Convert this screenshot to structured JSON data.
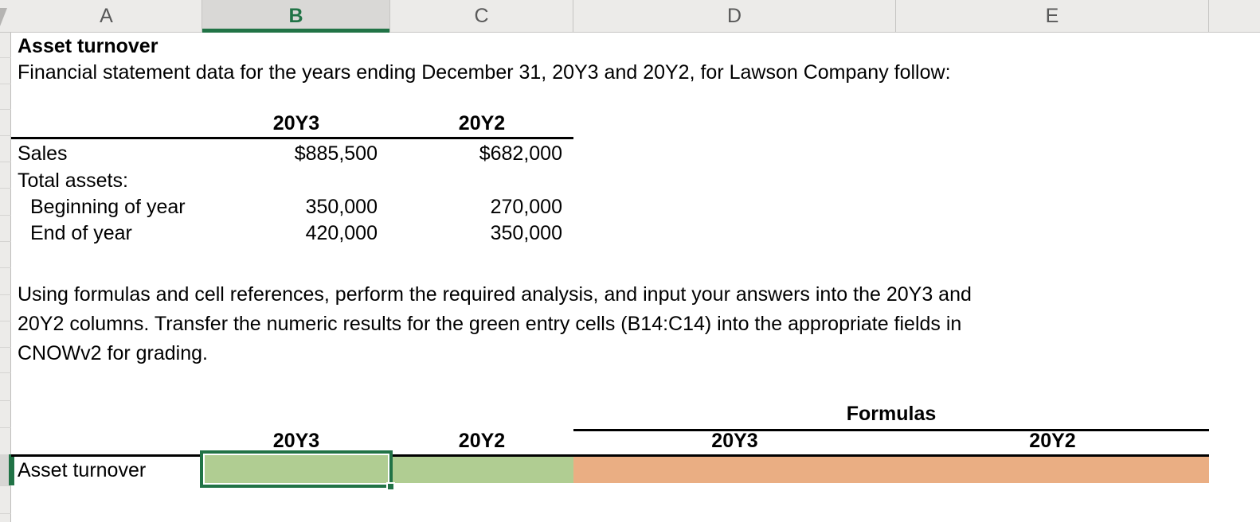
{
  "columns": [
    {
      "letter": "A"
    },
    {
      "letter": "B"
    },
    {
      "letter": "C"
    },
    {
      "letter": "D"
    },
    {
      "letter": "E"
    }
  ],
  "selected_column": "B",
  "title": "Asset turnover",
  "intro": "Financial statement data for the years ending December 31, 20Y3 and 20Y2, for Lawson Company follow:",
  "data_table": {
    "col_y3_header": "20Y3",
    "col_y2_header": "20Y2",
    "rows": [
      {
        "label": "Sales",
        "y3": "$885,500",
        "y2": "$682,000"
      },
      {
        "label": "Total assets:",
        "y3": "",
        "y2": ""
      },
      {
        "label": "Beginning of year",
        "y3": "350,000",
        "y2": "270,000"
      },
      {
        "label": "End of year",
        "y3": "420,000",
        "y2": "350,000"
      }
    ]
  },
  "instructions": {
    "line1": "Using formulas and cell references, perform the required analysis, and input your answers into the 20Y3 and",
    "line2": "20Y2 columns. Transfer the numeric results for the green entry cells (B14:C14) into the appropriate fields in",
    "line3": "CNOWv2 for grading."
  },
  "answer_section": {
    "formulas_header": "Formulas",
    "answer_y3_label": "20Y3",
    "answer_y2_label": "20Y2",
    "formula_y3_label": "20Y3",
    "formula_y2_label": "20Y2",
    "row_label": "Asset turnover",
    "selected_cell": "B14",
    "b14_value": "",
    "c14_value": "",
    "d14_value": "",
    "e14_value": ""
  },
  "colors": {
    "entry_cell_green": "#b0cd92",
    "formula_cell_orange": "#eaae83",
    "selection_green": "#217346"
  }
}
